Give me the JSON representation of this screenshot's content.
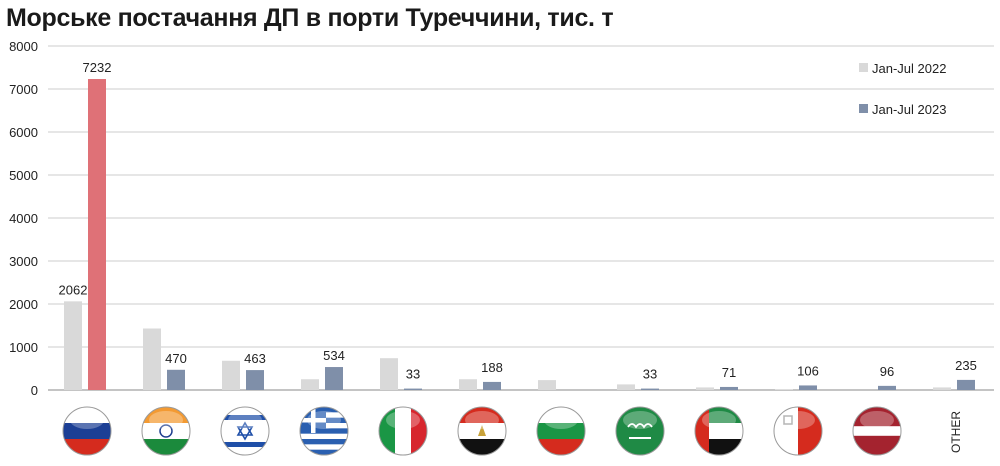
{
  "title": "Морське постачання ДП в порти Туреччини, тис. т",
  "colors": {
    "series_2022": "#d9d9d9",
    "series_2023": "#7f8fa9",
    "highlight_2023": "#df7177",
    "grid": "#cccccc",
    "axis": "#888888"
  },
  "chart_data": {
    "type": "bar",
    "title": "Морське постачання ДП в порти Туреччини, тис. т",
    "categories": [
      "russia-flag",
      "india-flag",
      "israel-flag",
      "greece-flag",
      "italy-flag",
      "egypt-flag",
      "bulgaria-flag",
      "saudi-arabia-flag",
      "uae-flag",
      "malta-flag",
      "latvia-flag",
      "OTHER"
    ],
    "category_text": [
      "",
      "",
      "",
      "",
      "",
      "",
      "",
      "",
      "",
      "",
      "",
      "OTHER"
    ],
    "series": [
      {
        "name": "Jan-Jul 2022",
        "values": [
          2062,
          1430,
          680,
          250,
          740,
          250,
          230,
          130,
          60,
          20,
          0,
          60
        ],
        "labels": [
          "2062",
          "",
          "",
          "",
          "",
          "",
          "",
          "",
          "",
          "",
          "",
          ""
        ]
      },
      {
        "name": "Jan-Jul 2023",
        "values": [
          7232,
          470,
          463,
          534,
          33,
          188,
          0,
          33,
          71,
          106,
          96,
          235
        ],
        "labels": [
          "7232",
          "470",
          "463",
          "534",
          "33",
          "188",
          "",
          "33",
          "71",
          "106",
          "96",
          "235"
        ]
      }
    ],
    "yticks": [
      "0",
      "1000",
      "2000",
      "3000",
      "4000",
      "5000",
      "6000",
      "7000",
      "8000"
    ],
    "ylim": [
      0,
      8000
    ],
    "grid": true,
    "legend": "top-right",
    "xlabel": "",
    "ylabel": ""
  }
}
